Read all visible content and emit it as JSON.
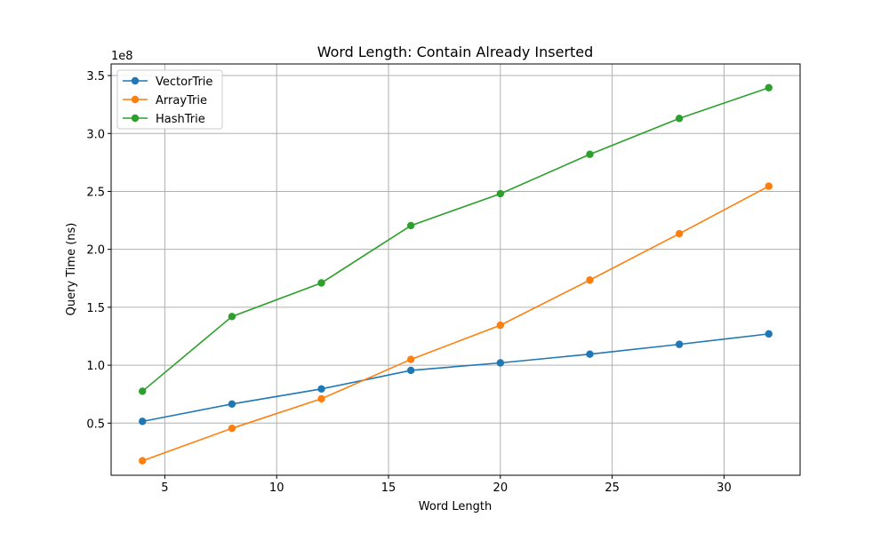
{
  "chart_data": {
    "type": "line",
    "title": "Word Length: Contain Already Inserted",
    "xlabel": "Word Length",
    "ylabel": "Query Time (ns)",
    "y_offset_label": "1e8",
    "xlim": [
      2.6,
      33.4
    ],
    "ylim": [
      5000000.0,
      360000000.0
    ],
    "x_ticks": [
      5,
      10,
      15,
      20,
      25,
      30
    ],
    "x_tick_labels": [
      "5",
      "10",
      "15",
      "20",
      "25",
      "30"
    ],
    "y_ticks": [
      50000000.0,
      100000000.0,
      150000000.0,
      200000000.0,
      250000000.0,
      300000000.0,
      350000000.0
    ],
    "y_tick_labels": [
      "0.5",
      "1.0",
      "1.5",
      "2.0",
      "2.5",
      "3.0",
      "3.5"
    ],
    "grid": true,
    "legend_position": "top-left",
    "x": [
      4,
      8,
      12,
      16,
      20,
      24,
      28,
      32
    ],
    "series": [
      {
        "name": "VectorTrie",
        "color": "#1f77b4",
        "marker": "circle",
        "values": [
          51500000,
          66500000,
          79500000,
          95500000,
          102000000,
          109500000,
          118000000,
          127000000
        ]
      },
      {
        "name": "ArrayTrie",
        "color": "#ff7f0e",
        "marker": "circle",
        "values": [
          17500000,
          45500000,
          71000000,
          105000000,
          134500000,
          173500000,
          213500000,
          254500000
        ]
      },
      {
        "name": "HashTrie",
        "color": "#2ca02c",
        "marker": "circle",
        "values": [
          77500000,
          142000000,
          171000000,
          220500000,
          248000000,
          282000000,
          313000000,
          339500000
        ]
      }
    ]
  }
}
